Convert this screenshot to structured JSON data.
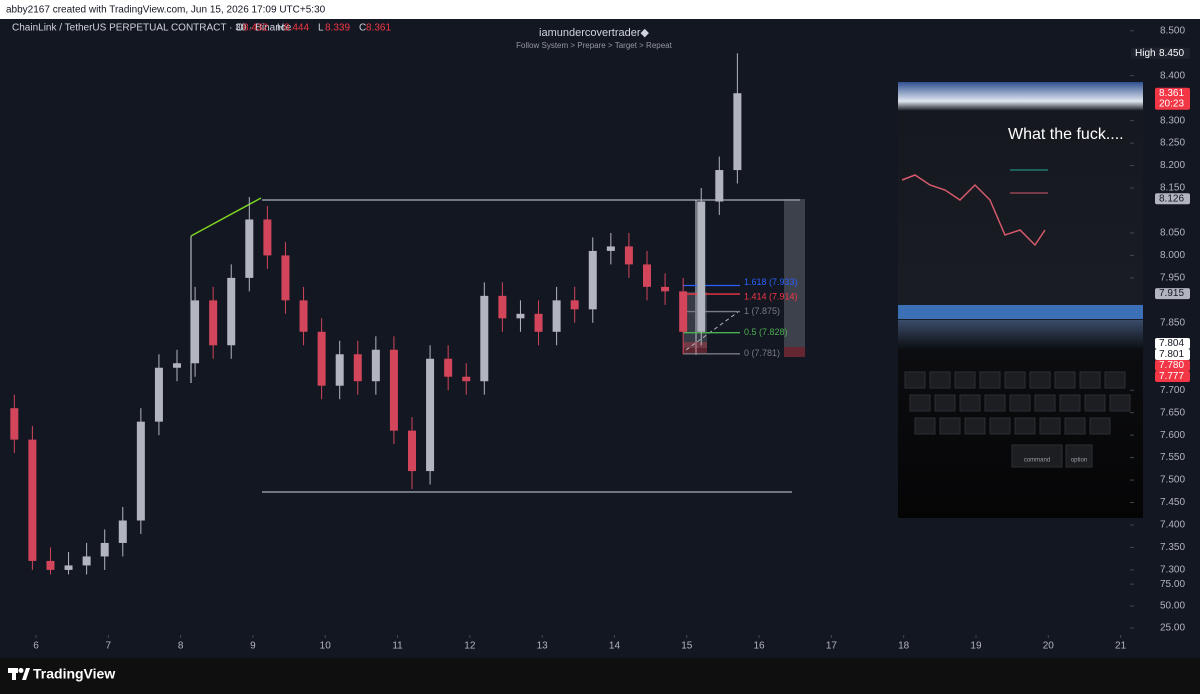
{
  "header": {
    "credit": "abby2167 created with TradingView.com, Jun 15, 2026 17:09 UTC+5:30"
  },
  "chart_data": {
    "type": "candlestick",
    "title": "ChainLink / TetherUS PERPETUAL CONTRACT · 30 · Binance",
    "ohlc_legend": [
      {
        "key": "O",
        "label": "8.432"
      },
      {
        "key": "H",
        "label": "8.444"
      },
      {
        "key": "L",
        "label": "8.339"
      },
      {
        "key": "C",
        "label": "8.361"
      }
    ],
    "watermark": {
      "author": "iamundercovertrader◆",
      "tagline": "Follow System > Prepare > Target > Repeat"
    },
    "x": [
      5.7,
      5.95,
      6.2,
      6.45,
      6.7,
      6.95,
      7.2,
      7.45,
      7.7,
      7.95,
      8.2,
      8.45,
      8.7,
      8.95,
      9.2,
      9.45,
      9.7,
      9.95,
      10.2,
      10.45,
      10.7,
      10.95,
      11.2,
      11.45,
      11.7,
      11.95,
      12.2,
      12.45,
      12.7,
      12.95,
      13.2,
      13.45,
      13.7,
      13.95,
      14.2,
      14.45,
      14.7,
      14.95,
      15.2,
      15.45,
      15.7
    ],
    "open": [
      7.66,
      7.59,
      7.32,
      7.3,
      7.31,
      7.33,
      7.36,
      7.41,
      7.63,
      7.75,
      7.76,
      7.9,
      7.8,
      7.95,
      8.08,
      8.0,
      7.9,
      7.83,
      7.71,
      7.78,
      7.72,
      7.79,
      7.61,
      7.52,
      7.77,
      7.73,
      7.72,
      7.91,
      7.86,
      7.87,
      7.83,
      7.9,
      7.88,
      8.01,
      8.02,
      7.98,
      7.93,
      7.92,
      7.83,
      8.12,
      8.19
    ],
    "high": [
      7.69,
      7.62,
      7.35,
      7.34,
      7.36,
      7.39,
      7.44,
      7.66,
      7.78,
      7.79,
      7.93,
      7.93,
      7.98,
      8.13,
      8.11,
      8.03,
      7.93,
      7.86,
      7.81,
      7.81,
      7.82,
      7.82,
      7.64,
      7.8,
      7.8,
      7.76,
      7.94,
      7.94,
      7.9,
      7.9,
      7.93,
      7.93,
      8.04,
      8.05,
      8.05,
      8.01,
      7.96,
      7.95,
      8.15,
      8.22,
      8.45
    ],
    "low": [
      7.56,
      7.3,
      7.29,
      7.29,
      7.29,
      7.3,
      7.33,
      7.38,
      7.6,
      7.72,
      7.73,
      7.77,
      7.77,
      7.92,
      7.97,
      7.87,
      7.8,
      7.68,
      7.68,
      7.69,
      7.69,
      7.58,
      7.48,
      7.49,
      7.7,
      7.69,
      7.69,
      7.83,
      7.83,
      7.8,
      7.8,
      7.85,
      7.85,
      7.98,
      7.95,
      7.9,
      7.89,
      7.78,
      7.8,
      8.09,
      8.16
    ],
    "close": [
      7.59,
      7.32,
      7.3,
      7.31,
      7.33,
      7.36,
      7.41,
      7.63,
      7.75,
      7.76,
      7.9,
      7.8,
      7.95,
      8.08,
      8.0,
      7.9,
      7.83,
      7.71,
      7.78,
      7.72,
      7.79,
      7.61,
      7.52,
      7.77,
      7.73,
      7.72,
      7.91,
      7.86,
      7.87,
      7.83,
      7.9,
      7.88,
      8.01,
      8.02,
      7.98,
      7.93,
      7.92,
      7.83,
      8.12,
      8.19,
      8.361
    ],
    "up_color": "#b2b5be",
    "down_color": "#d2455a",
    "xlim": [
      5.502,
      21.13
    ],
    "xticks": [
      6,
      7,
      8,
      9,
      10,
      11,
      12,
      13,
      14,
      15,
      16,
      17,
      18,
      19,
      20,
      21
    ],
    "ylim": [
      7.282,
      8.524
    ],
    "yticks": [
      {
        "value": 8.5,
        "label": "8.500"
      },
      {
        "value": 8.4,
        "label": "8.400"
      },
      {
        "value": 8.3,
        "label": "8.300"
      },
      {
        "value": 8.25,
        "label": "8.250"
      },
      {
        "value": 8.2,
        "label": "8.200"
      },
      {
        "value": 8.15,
        "label": "8.150"
      },
      {
        "value": 8.05,
        "label": "8.050"
      },
      {
        "value": 8.0,
        "label": "8.000"
      },
      {
        "value": 7.95,
        "label": "7.950"
      },
      {
        "value": 7.85,
        "label": "7.850"
      },
      {
        "value": 7.7,
        "label": "7.700"
      },
      {
        "value": 7.65,
        "label": "7.650"
      },
      {
        "value": 7.6,
        "label": "7.600"
      },
      {
        "value": 7.55,
        "label": "7.550"
      },
      {
        "value": 7.5,
        "label": "7.500"
      },
      {
        "value": 7.45,
        "label": "7.450"
      },
      {
        "value": 7.4,
        "label": "7.400"
      },
      {
        "value": 7.35,
        "label": "7.350"
      },
      {
        "value": 7.3,
        "label": "7.300"
      }
    ],
    "y2lim": [
      17,
      82
    ],
    "y2ticks": [
      {
        "value": 75,
        "label": "75.00"
      },
      {
        "value": 50,
        "label": "50.00"
      },
      {
        "value": 25,
        "label": "25.00"
      }
    ],
    "grid": false,
    "price_badges": [
      {
        "value": 8.45,
        "label": "8.450",
        "tag": "High",
        "bg": "#1e222d",
        "fg": "#ffffff"
      },
      {
        "value": 8.361,
        "label": "8.361",
        "sub": "20:23",
        "bg": "#f23645",
        "fg": "#ffffff"
      },
      {
        "value": 8.126,
        "label": "8.126",
        "bg": "#b2b5be",
        "fg": "#131722"
      },
      {
        "value": 7.915,
        "label": "7.915",
        "bg": "#b2b5be",
        "fg": "#131722"
      },
      {
        "value": 7.804,
        "label": "7.804",
        "bg": "#ffffff",
        "fg": "#131722"
      },
      {
        "value": 7.801,
        "label": "7.801",
        "bg": "#ffffff",
        "fg": "#131722"
      },
      {
        "value": 7.78,
        "label": "7.780",
        "bg": "#f23645",
        "fg": "#ffffff"
      },
      {
        "value": 7.777,
        "label": "7.777",
        "bg": "#f23645",
        "fg": "#ffffff"
      }
    ],
    "fib_levels": [
      {
        "value": 7.933,
        "label": "1.618 (7.933)",
        "color": "#2962ff"
      },
      {
        "value": 7.914,
        "label": "1.414 (7.914)",
        "color": "#f23645"
      },
      {
        "value": 7.875,
        "label": "1 (7.875)",
        "color": "#787b86"
      },
      {
        "value": 7.828,
        "label": "0.5 (7.828)",
        "color": "#4caf50"
      },
      {
        "value": 7.781,
        "label": "0 (7.781)",
        "color": "#787b86"
      }
    ]
  },
  "inset": {
    "caption": "What the fuck....",
    "keys": [
      "command",
      "option"
    ]
  },
  "footer": {
    "brand": "TradingView"
  }
}
